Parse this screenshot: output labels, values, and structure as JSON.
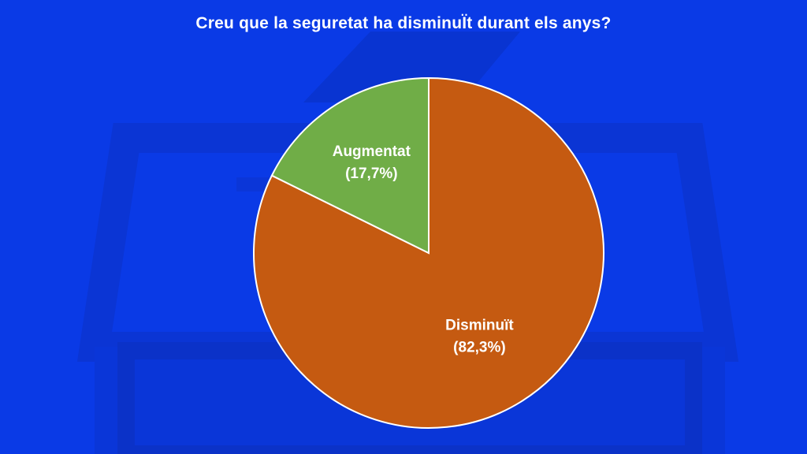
{
  "chart_data": {
    "type": "pie",
    "title": "Creu que la seguretat ha disminuÏt durant els anys?",
    "slices": [
      {
        "label": "Disminuït",
        "value_label": "(82,3%)",
        "value": 82.3,
        "color": "#c55a11"
      },
      {
        "label": "Augmentat",
        "value_label": "(17,7%)",
        "value": 17.7,
        "color": "#70ad47"
      }
    ],
    "legend": "none"
  },
  "colors": {
    "background": "#0a3ae6",
    "title_text": "#ffffff",
    "slice_border": "#ffffff"
  }
}
